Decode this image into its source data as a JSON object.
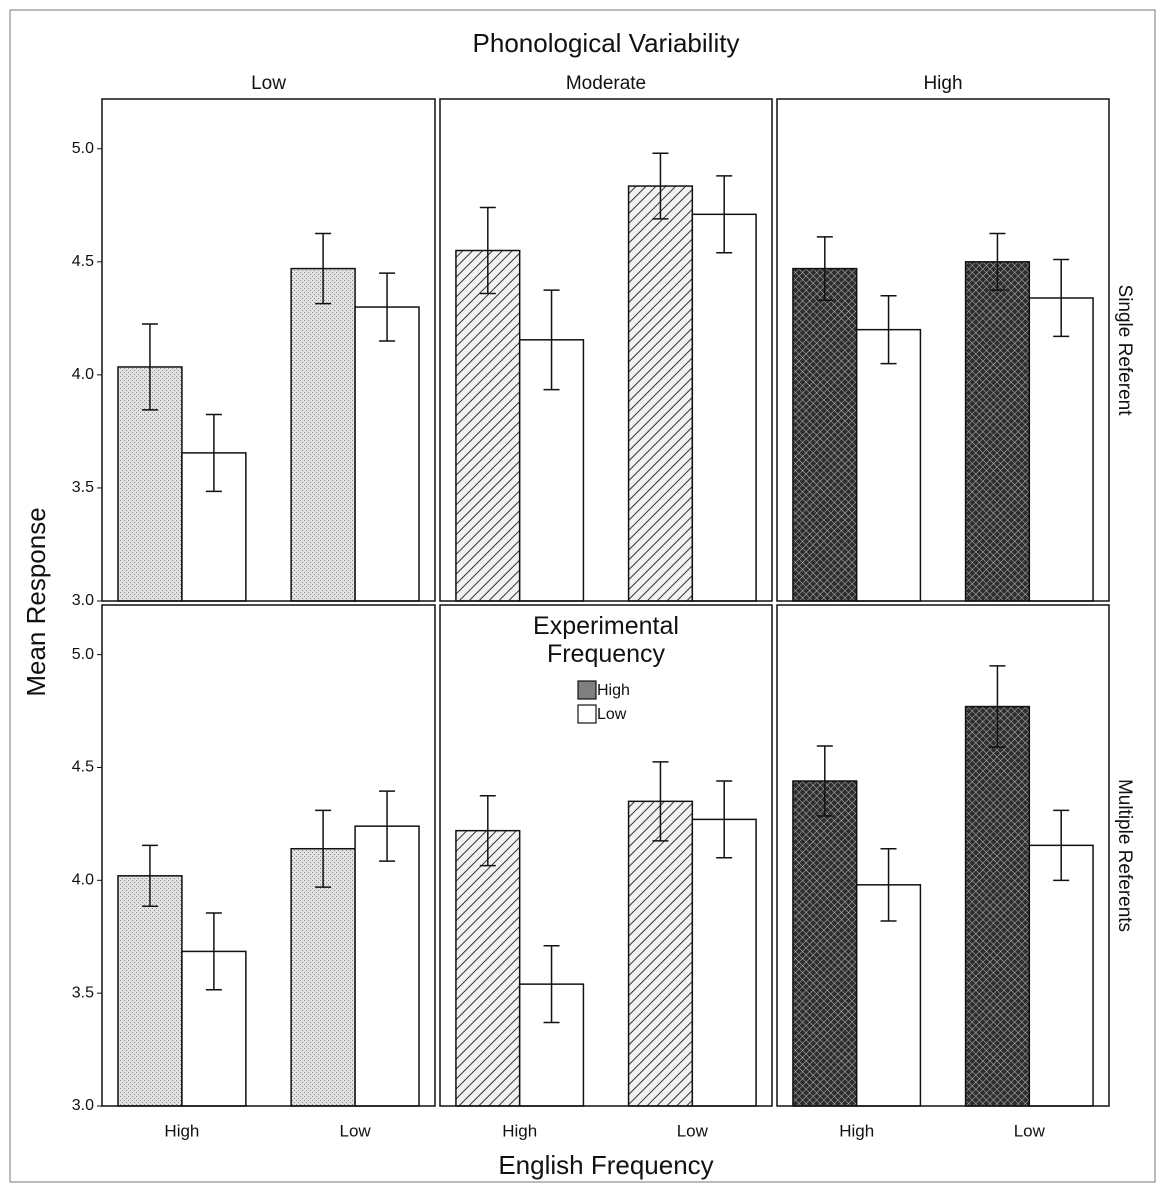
{
  "chart_data": {
    "type": "bar",
    "title": "Phonological Variability",
    "xlabel": "English Frequency",
    "ylabel": "Mean Response",
    "legend_title": "Experimental Frequency",
    "columns": [
      "Low",
      "Moderate",
      "High"
    ],
    "rows": [
      "Single Referent",
      "Multiple Referents"
    ],
    "categories": [
      "High",
      "Low"
    ],
    "series": [
      {
        "name": "High",
        "color": "#808080"
      },
      {
        "name": "Low",
        "color": "#ffffff"
      }
    ],
    "patterns": [
      "dots",
      "diagonal",
      "crosshatch"
    ],
    "ylim": [
      3,
      5.22
    ],
    "yticks": [
      {
        "value": 3,
        "label": "3.0"
      },
      {
        "value": 3.5,
        "label": "3.5"
      },
      {
        "value": 4,
        "label": "4.0"
      },
      {
        "value": 4.5,
        "label": "4.5"
      },
      {
        "value": 5,
        "label": "5.0"
      }
    ],
    "panels": [
      {
        "series": [
          {
            "values": [
              4.035,
              4.47
            ],
            "errors": [
              0.19,
              0.155
            ]
          },
          {
            "values": [
              3.655,
              4.3
            ],
            "errors": [
              0.17,
              0.15
            ]
          }
        ]
      },
      {
        "series": [
          {
            "values": [
              4.55,
              4.835
            ],
            "errors": [
              0.19,
              0.145
            ]
          },
          {
            "values": [
              4.155,
              4.71
            ],
            "errors": [
              0.22,
              0.17
            ]
          }
        ]
      },
      {
        "series": [
          {
            "values": [
              4.47,
              4.5
            ],
            "errors": [
              0.14,
              0.125
            ]
          },
          {
            "values": [
              4.2,
              4.34
            ],
            "errors": [
              0.15,
              0.17
            ]
          }
        ]
      },
      {
        "series": [
          {
            "values": [
              4.02,
              4.14
            ],
            "errors": [
              0.135,
              0.17
            ]
          },
          {
            "values": [
              3.685,
              4.24
            ],
            "errors": [
              0.17,
              0.155
            ]
          }
        ]
      },
      {
        "series": [
          {
            "values": [
              4.22,
              4.35
            ],
            "errors": [
              0.155,
              0.175
            ]
          },
          {
            "values": [
              3.54,
              4.27
            ],
            "errors": [
              0.17,
              0.17
            ]
          }
        ]
      },
      {
        "series": [
          {
            "values": [
              4.44,
              4.77
            ],
            "errors": [
              0.155,
              0.18
            ]
          },
          {
            "values": [
              3.98,
              4.155
            ],
            "errors": [
              0.16,
              0.155
            ]
          }
        ]
      }
    ]
  }
}
